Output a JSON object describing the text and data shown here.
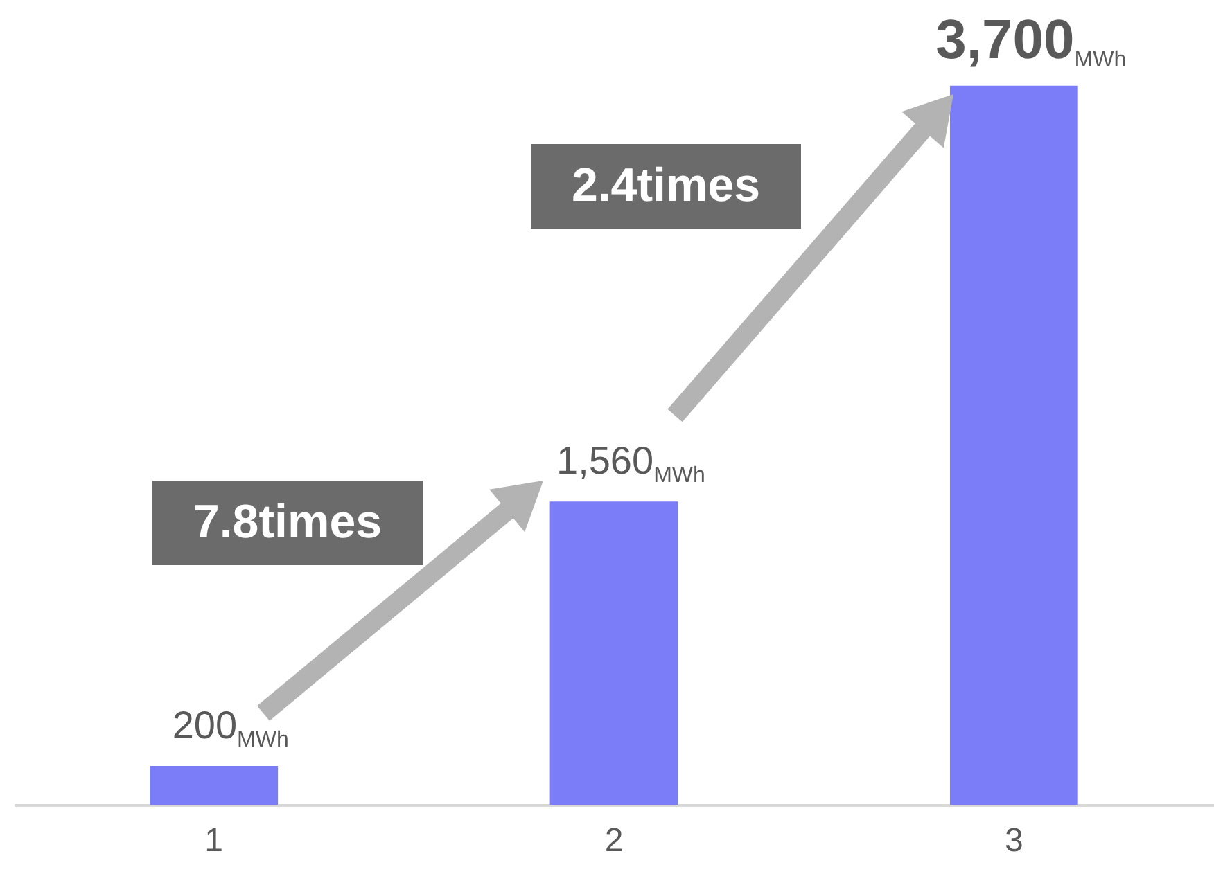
{
  "chart_data": {
    "type": "bar",
    "categories": [
      "1",
      "2",
      "3"
    ],
    "values": [
      200,
      1560,
      3700
    ],
    "color": "#7b7cf8",
    "value_labels": [
      "200$_{MWh}$",
      "1,560$_{MWh}$",
      "3,700$_{MWh}$"
    ],
    "annotations": [
      "7.8times",
      "2.4times"
    ],
    "grid": false
  }
}
